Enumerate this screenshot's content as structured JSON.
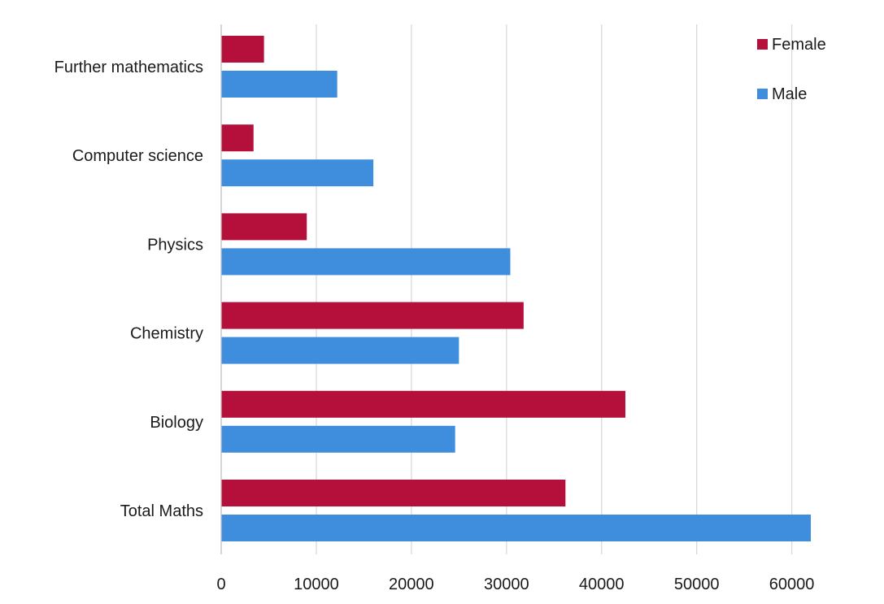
{
  "chart_data": {
    "type": "bar",
    "orientation": "horizontal",
    "categories": [
      "Further mathematics",
      "Computer science",
      "Physics",
      "Chemistry",
      "Biology",
      "Total Maths"
    ],
    "series": [
      {
        "name": "Female",
        "color": "#b5103c",
        "values": [
          4500,
          3400,
          9000,
          31800,
          42500,
          36200
        ]
      },
      {
        "name": "Male",
        "color": "#3f8ede",
        "values": [
          12200,
          16000,
          30400,
          25000,
          24600,
          62000
        ]
      }
    ],
    "xlim": [
      0,
      62000
    ],
    "xticks": [
      0,
      10000,
      20000,
      30000,
      40000,
      50000,
      60000
    ],
    "xtick_labels": [
      "0",
      "10000",
      "20000",
      "30000",
      "40000",
      "50000",
      "60000"
    ],
    "grid": "vertical",
    "legend": "top-right",
    "title": "",
    "xlabel": "",
    "ylabel": ""
  }
}
